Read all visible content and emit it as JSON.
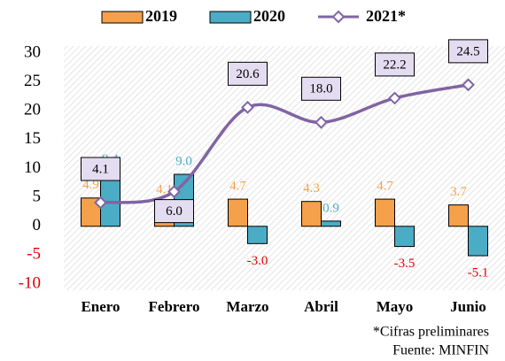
{
  "chart_data": {
    "type": "bar",
    "categories": [
      "Enero",
      "Febrero",
      "Marzo",
      "Abril",
      "Mayo",
      "Junio"
    ],
    "series": [
      {
        "name": "2019",
        "type": "bar",
        "color": "#f5a04a",
        "values": [
          4.9,
          4.1,
          4.7,
          4.3,
          4.7,
          3.7
        ],
        "value_labels": [
          "4.9",
          "4.1",
          "4.7",
          "4.3",
          "4.7",
          "3.7"
        ]
      },
      {
        "name": "2020",
        "type": "bar",
        "color": "#4bacc6",
        "values": [
          9.4,
          9.0,
          -3.0,
          0.9,
          -3.5,
          -5.1
        ],
        "value_labels": [
          "9.4",
          "9.0",
          "-3.0",
          "0.9",
          "-3.5",
          "-5.1"
        ]
      },
      {
        "name": "2021*",
        "type": "line",
        "color": "#8064a2",
        "values": [
          4.1,
          6.0,
          20.6,
          18.0,
          22.2,
          24.5
        ],
        "value_labels": [
          "4.1",
          "6.0",
          "20.6",
          "18.0",
          "22.2",
          "24.5"
        ]
      }
    ],
    "ylim": [
      -10,
      30
    ],
    "yticks": [
      -10,
      -5,
      0,
      5,
      10,
      15,
      20,
      25,
      30
    ],
    "notes": [
      "*Cifras preliminares",
      "Fuente: MINFIN"
    ],
    "legend": "top"
  }
}
